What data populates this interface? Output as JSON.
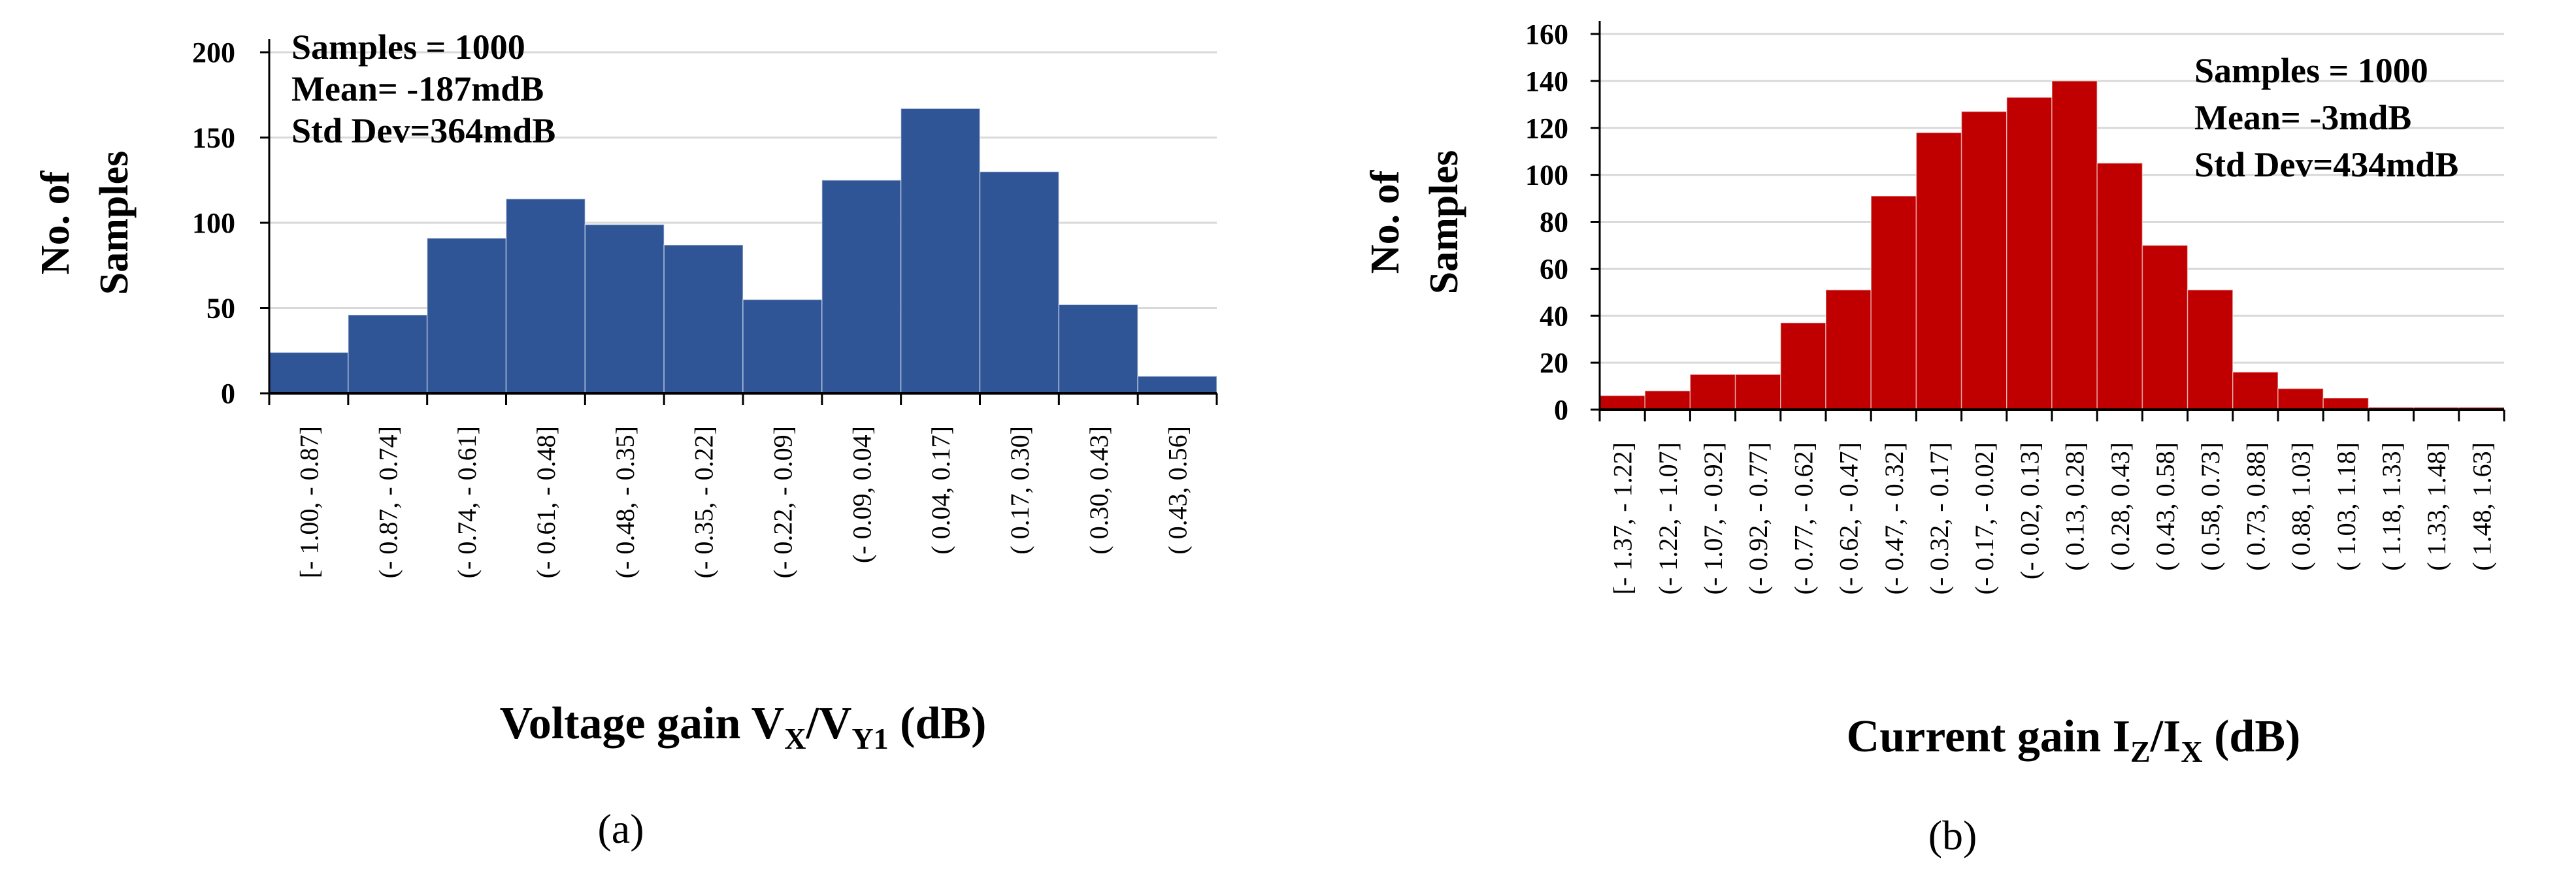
{
  "chart_data": [
    {
      "type": "bar",
      "title": "",
      "ylabel": [
        "No. of",
        "Samples"
      ],
      "xlabel": {
        "main": "Voltage gain V",
        "sub1": "X",
        "mid": "/V",
        "sub2": "Y1",
        "unit": " (dB)"
      },
      "ylim": [
        0,
        200
      ],
      "yticks": [
        0,
        50,
        100,
        150,
        200
      ],
      "grid": true,
      "legend": "none",
      "color": "#2F5597",
      "categories": [
        "[- 1.00, - 0.87]",
        "(- 0.87, - 0.74]",
        "(- 0.74, - 0.61]",
        "(- 0.61, - 0.48]",
        "(- 0.48, - 0.35]",
        "(- 0.35, - 0.22]",
        "(- 0.22, - 0.09]",
        "(- 0.09,  0.04]",
        "( 0.04,  0.17]",
        "( 0.17,  0.30]",
        "( 0.30,  0.43]",
        "( 0.43,  0.56]"
      ],
      "values": [
        24,
        46,
        91,
        114,
        99,
        87,
        55,
        125,
        167,
        130,
        52,
        10
      ],
      "stats": [
        "Samples = 1000",
        "Mean= -187mdB",
        "Std Dev=364mdB"
      ],
      "caption": "(a)"
    },
    {
      "type": "bar",
      "title": "",
      "ylabel": [
        "No. of",
        "Samples"
      ],
      "xlabel": {
        "main": "Current gain I",
        "sub1": "Z",
        "mid": "/I",
        "sub2": "X",
        "unit": " (dB)"
      },
      "ylim": [
        0,
        160
      ],
      "yticks": [
        0,
        20,
        40,
        60,
        80,
        100,
        120,
        140,
        160
      ],
      "grid": true,
      "legend": "none",
      "color": "#C00000",
      "categories": [
        "[- 1.37, - 1.22]",
        "(- 1.22, - 1.07]",
        "(- 1.07, - 0.92]",
        "(- 0.92, - 0.77]",
        "(- 0.77, - 0.62]",
        "(- 0.62, - 0.47]",
        "(- 0.47, - 0.32]",
        "(- 0.32, - 0.17]",
        "(- 0.17, - 0.02]",
        "(- 0.02,  0.13]",
        "( 0.13,  0.28]",
        "( 0.28,  0.43]",
        "( 0.43,  0.58]",
        "( 0.58,  0.73]",
        "( 0.73,  0.88]",
        "( 0.88,  1.03]",
        "( 1.03,  1.18]",
        "( 1.18,  1.33]",
        "( 1.33,  1.48]",
        "( 1.48,  1.63]"
      ],
      "values": [
        6,
        8,
        15,
        15,
        37,
        51,
        91,
        118,
        127,
        133,
        140,
        105,
        70,
        51,
        16,
        9,
        5,
        1,
        1,
        1
      ],
      "stats": [
        "Samples = 1000",
        "Mean= -3mdB",
        "Std Dev=434mdB"
      ],
      "caption": "(b)"
    }
  ]
}
